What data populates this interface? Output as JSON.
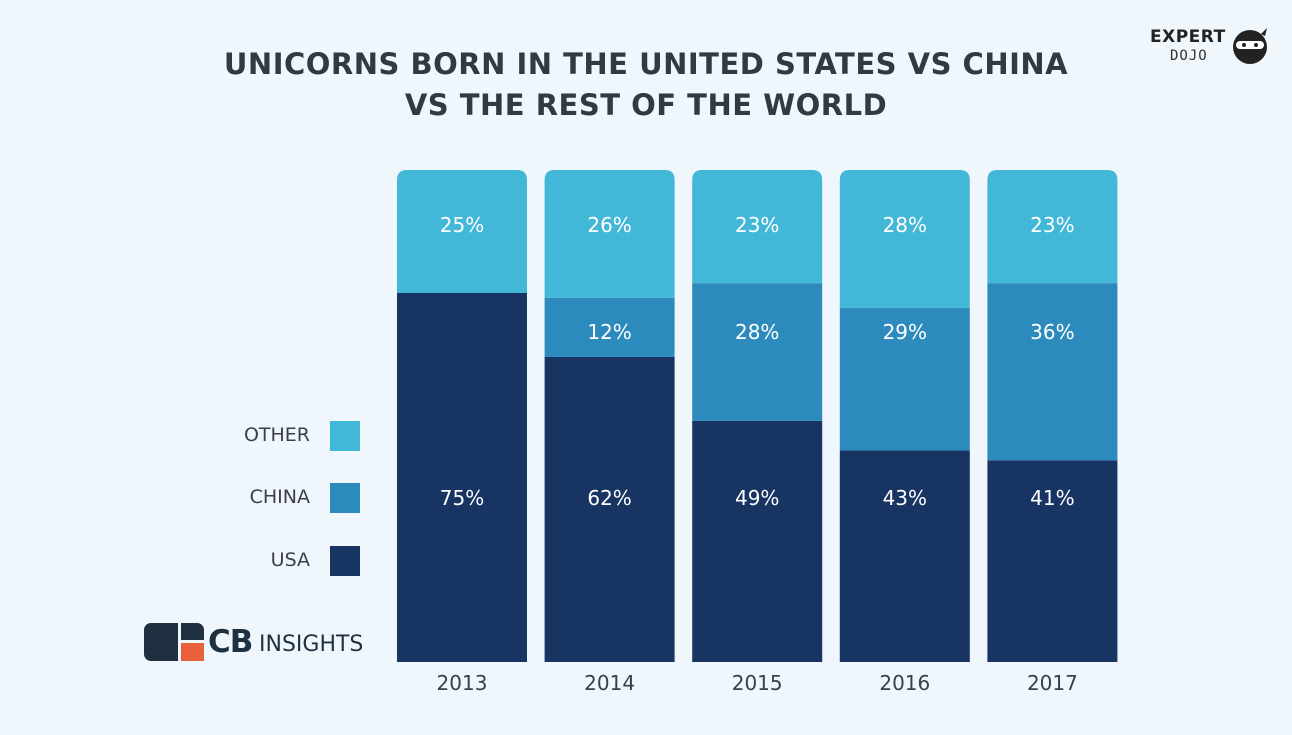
{
  "title_lines": [
    "UNICORNS BORN IN THE UNITED STATES VS CHINA",
    "VS THE REST OF THE WORLD"
  ],
  "brand_top": {
    "word1": "EXPERT",
    "word2": "DOJO"
  },
  "brand_bottom": {
    "cb": "CB",
    "insights": "INSIGHTS"
  },
  "legend": [
    {
      "label": "OTHER",
      "color": "#42b7d7"
    },
    {
      "label": "CHINA",
      "color": "#2c8bbc"
    },
    {
      "label": "USA",
      "color": "#173462"
    }
  ],
  "chart_data": {
    "type": "bar",
    "stacked": true,
    "categories": [
      "2013",
      "2014",
      "2015",
      "2016",
      "2017"
    ],
    "series": [
      {
        "name": "USA",
        "color": "#173462",
        "values": [
          75,
          62,
          49,
          43,
          41
        ]
      },
      {
        "name": "CHINA",
        "color": "#2c8bbc",
        "values": [
          0,
          12,
          28,
          29,
          36
        ]
      },
      {
        "name": "OTHER",
        "color": "#42b7d7",
        "values": [
          25,
          26,
          23,
          28,
          23
        ]
      }
    ],
    "value_labels": {
      "USA": [
        "75%",
        "62%",
        "49%",
        "43%",
        "41%"
      ],
      "CHINA": [
        "",
        "12%",
        "28%",
        "29%",
        "36%"
      ],
      "OTHER": [
        "25%",
        "26%",
        "23%",
        "28%",
        "23%"
      ]
    },
    "ylim": [
      0,
      100
    ],
    "legend_position": "left"
  }
}
